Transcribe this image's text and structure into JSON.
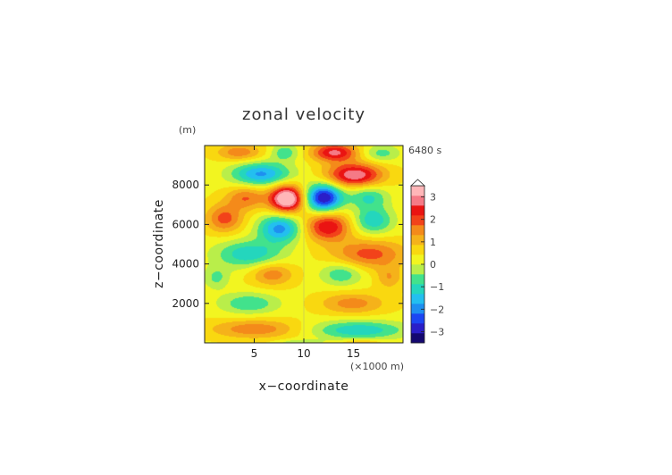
{
  "chart_data": {
    "type": "heatmap",
    "title": "zonal velocity",
    "time_label": "6480 s",
    "xlabel": "x−coordinate",
    "ylabel": "z−coordinate",
    "x_unit": "(×1000 m)",
    "y_unit": "(m)",
    "xlim": [
      0,
      20
    ],
    "ylim": [
      0,
      10000
    ],
    "x_ticks": [
      5,
      10,
      15
    ],
    "x_tick_labels": [
      "5",
      "10",
      "15"
    ],
    "y_ticks": [
      2000,
      4000,
      6000,
      8000
    ],
    "y_tick_labels": [
      "2000",
      "4000",
      "6000",
      "8000"
    ],
    "grid": false,
    "colorbar": {
      "ticks": [
        3,
        2,
        1,
        0,
        -1,
        -2,
        -3
      ],
      "tick_labels": [
        "3",
        "2",
        "1",
        "0",
        "−1",
        "−2",
        "−3"
      ],
      "range": [
        -3.5,
        3.5
      ],
      "extend": "max",
      "colors": [
        "#140870",
        "#2a1ec8",
        "#1c46f2",
        "#1e8ff0",
        "#23bfef",
        "#24d6bd",
        "#42e28c",
        "#b9ee4a",
        "#f2f520",
        "#f9d810",
        "#f5b21a",
        "#f48a1a",
        "#f2421a",
        "#ea1412",
        "#f57a86",
        "#ffb6b8"
      ]
    },
    "field": {
      "background": 0.35,
      "features": [
        {
          "x": 8.3,
          "z": 7300,
          "sx": 1.2,
          "sz": 480,
          "value": 3.7
        },
        {
          "x": 12.0,
          "z": 7350,
          "sx": 1.3,
          "sz": 500,
          "value": -3.5
        },
        {
          "x": 15.1,
          "z": 8500,
          "sx": 2.0,
          "sz": 430,
          "value": 2.7
        },
        {
          "x": 5.7,
          "z": 8550,
          "sx": 2.1,
          "sz": 420,
          "value": -2.2
        },
        {
          "x": 7.6,
          "z": 5800,
          "sx": 1.5,
          "sz": 500,
          "value": -2.3
        },
        {
          "x": 12.4,
          "z": 5900,
          "sx": 1.6,
          "sz": 520,
          "value": 2.3
        },
        {
          "x": 3.5,
          "z": 9650,
          "sx": 1.6,
          "sz": 300,
          "value": 1.3
        },
        {
          "x": 8.1,
          "z": 9650,
          "sx": 1.0,
          "sz": 300,
          "value": -1.1
        },
        {
          "x": 13.1,
          "z": 9650,
          "sx": 1.6,
          "sz": 320,
          "value": 2.4
        },
        {
          "x": 17.8,
          "z": 9600,
          "sx": 1.3,
          "sz": 300,
          "value": -1.0
        },
        {
          "x": 4.2,
          "z": 7350,
          "sx": 1.4,
          "sz": 420,
          "value": 1.4
        },
        {
          "x": 16.5,
          "z": 7400,
          "sx": 1.4,
          "sz": 420,
          "value": -1.3
        },
        {
          "x": 2.0,
          "z": 6300,
          "sx": 1.3,
          "sz": 500,
          "value": 1.6
        },
        {
          "x": 17.0,
          "z": 6200,
          "sx": 1.4,
          "sz": 480,
          "value": -1.6
        },
        {
          "x": 4.5,
          "z": 4500,
          "sx": 2.4,
          "sz": 500,
          "value": -1.6
        },
        {
          "x": 16.6,
          "z": 4500,
          "sx": 2.6,
          "sz": 520,
          "value": 1.6
        },
        {
          "x": 6.8,
          "z": 3500,
          "sx": 1.5,
          "sz": 420,
          "value": 1.3
        },
        {
          "x": 13.8,
          "z": 3500,
          "sx": 1.5,
          "sz": 420,
          "value": -1.2
        },
        {
          "x": 1.2,
          "z": 3300,
          "sx": 0.9,
          "sz": 400,
          "value": -0.9
        },
        {
          "x": 18.6,
          "z": 3300,
          "sx": 0.9,
          "sz": 400,
          "value": 0.9
        },
        {
          "x": 4.5,
          "z": 2000,
          "sx": 2.1,
          "sz": 380,
          "value": -1.2
        },
        {
          "x": 14.9,
          "z": 2000,
          "sx": 2.3,
          "sz": 380,
          "value": 1.2
        },
        {
          "x": 5.1,
          "z": 700,
          "sx": 3.2,
          "sz": 340,
          "value": 1.3
        },
        {
          "x": 15.5,
          "z": 650,
          "sx": 3.4,
          "sz": 340,
          "value": -1.6
        },
        {
          "x": 9.5,
          "z": 0,
          "sx": 1.5,
          "sz": 120,
          "value": -0.8
        },
        {
          "x": 15.8,
          "z": 0,
          "sx": 1.3,
          "sz": 120,
          "value": 1.0
        }
      ]
    }
  }
}
